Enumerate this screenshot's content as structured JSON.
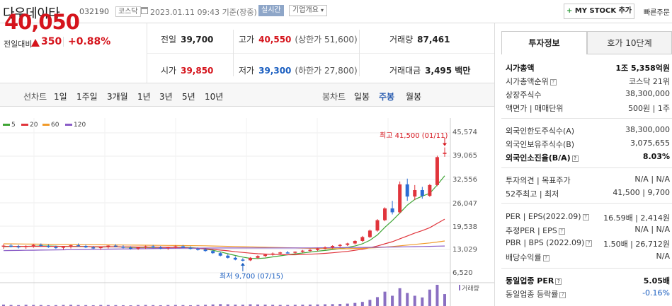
{
  "header": {
    "stock_name": "다우데이타",
    "stock_code": "032190",
    "market": "코스닥",
    "datetime": "2023.01.11 09:43 기준(장중)",
    "realtime": "실시간",
    "company_overview": "기업개요",
    "mystock_button": "MY STOCK 추가",
    "quick_order": "빠른주문"
  },
  "price": {
    "current": "40,050",
    "change_label": "전일대비",
    "change_amount": "350",
    "change_rate": "+0.88%"
  },
  "stats": {
    "prev_close": {
      "label": "전일",
      "value": "39,700"
    },
    "high": {
      "label": "고가",
      "value": "40,550",
      "sub": "(상한가 51,600)"
    },
    "volume": {
      "label": "거래량",
      "value": "87,461"
    },
    "open": {
      "label": "시가",
      "value": "39,850"
    },
    "low": {
      "label": "저가",
      "value": "39,300",
      "sub": "(하한가 27,800)"
    },
    "amount": {
      "label": "거래대금",
      "value": "3,495 백만"
    }
  },
  "periods": {
    "line_label": "선차트",
    "line_items": [
      "1일",
      "1주일",
      "3개월",
      "1년",
      "3년",
      "5년",
      "10년"
    ],
    "candle_label": "봉차트",
    "candle_items": [
      "일봉",
      "주봉",
      "월봉"
    ],
    "active": "주봉"
  },
  "chart_data": {
    "type": "candlestick",
    "legend": [
      {
        "name": "5",
        "color": "#3fa535"
      },
      {
        "name": "20",
        "color": "#e0343b"
      },
      {
        "name": "60",
        "color": "#f19a2a"
      },
      {
        "name": "120",
        "color": "#8a5cc7"
      }
    ],
    "y_ticks": [
      "45,574",
      "39,065",
      "32,556",
      "26,047",
      "19,538",
      "13,029",
      "6,520"
    ],
    "ylim": [
      6520,
      45574
    ],
    "high_annotation": "최고 41,500 (01/11)",
    "low_annotation": "최저 9,700 (07/15)",
    "volume_label": "거래량",
    "candles": [
      [
        13800,
        14500,
        13200,
        14100
      ],
      [
        14100,
        14600,
        13600,
        13900
      ],
      [
        13900,
        14300,
        13300,
        13700
      ],
      [
        13700,
        14200,
        13200,
        14000
      ],
      [
        14000,
        14600,
        13500,
        14300
      ],
      [
        14300,
        14700,
        13800,
        14000
      ],
      [
        14000,
        14400,
        13500,
        13700
      ],
      [
        13700,
        14100,
        13200,
        13500
      ],
      [
        13500,
        14000,
        13000,
        13800
      ],
      [
        13800,
        14300,
        13300,
        14200
      ],
      [
        14200,
        14700,
        13800,
        14000
      ],
      [
        14000,
        14400,
        13400,
        13600
      ],
      [
        13600,
        14000,
        13100,
        13400
      ],
      [
        13400,
        13900,
        12900,
        13700
      ],
      [
        13700,
        14200,
        13300,
        14100
      ],
      [
        14100,
        14500,
        13700,
        13800
      ],
      [
        13800,
        14200,
        13300,
        13500
      ],
      [
        13500,
        13900,
        13000,
        13300
      ],
      [
        13300,
        13800,
        12900,
        13600
      ],
      [
        13600,
        14100,
        13200,
        13900
      ],
      [
        13900,
        14300,
        13400,
        13600
      ],
      [
        13600,
        14000,
        13100,
        13400
      ],
      [
        13400,
        13800,
        12900,
        13700
      ],
      [
        13700,
        14200,
        13300,
        13900
      ],
      [
        13900,
        14300,
        13400,
        13500
      ],
      [
        13500,
        13900,
        13000,
        13200
      ],
      [
        13200,
        13600,
        12700,
        13000
      ],
      [
        13000,
        13400,
        12400,
        12600
      ],
      [
        12600,
        13000,
        11800,
        12000
      ],
      [
        12000,
        12400,
        11100,
        11300
      ],
      [
        11300,
        11700,
        10500,
        10700
      ],
      [
        10700,
        11100,
        10000,
        10200
      ],
      [
        10200,
        10600,
        9700,
        10000
      ],
      [
        10000,
        10900,
        9800,
        10700
      ],
      [
        10700,
        11400,
        10400,
        11200
      ],
      [
        11200,
        11800,
        10900,
        11600
      ],
      [
        11600,
        12200,
        11300,
        11900
      ],
      [
        11900,
        12400,
        11600,
        12200
      ],
      [
        12200,
        12600,
        11900,
        12100
      ],
      [
        12100,
        12500,
        11800,
        12400
      ],
      [
        12400,
        12900,
        12100,
        12700
      ],
      [
        12700,
        13200,
        12400,
        12900
      ],
      [
        12900,
        13500,
        12600,
        13300
      ],
      [
        13300,
        13900,
        13000,
        13600
      ],
      [
        13600,
        14200,
        13300,
        14000
      ],
      [
        14000,
        14600,
        13700,
        14300
      ],
      [
        14300,
        14900,
        14000,
        14700
      ],
      [
        14700,
        15600,
        14400,
        15400
      ],
      [
        15400,
        16800,
        15100,
        16500
      ],
      [
        16500,
        18600,
        16200,
        18300
      ],
      [
        18300,
        21500,
        18000,
        21200
      ],
      [
        21200,
        24800,
        20900,
        24500
      ],
      [
        24500,
        26600,
        22800,
        23400
      ],
      [
        23400,
        32000,
        23000,
        31200
      ],
      [
        31200,
        32800,
        26600,
        27800
      ],
      [
        27800,
        31000,
        26800,
        29600
      ],
      [
        29600,
        30500,
        27200,
        28000
      ],
      [
        28000,
        31300,
        27700,
        31000
      ],
      [
        31000,
        39200,
        30700,
        38800
      ],
      [
        39700,
        41500,
        38900,
        40050
      ]
    ],
    "ma": {
      "5": [
        13800,
        13850,
        13900,
        13900,
        13950,
        14000,
        14000,
        13950,
        13850,
        13850,
        13900,
        13850,
        13750,
        13700,
        13750,
        13750,
        13700,
        13650,
        13600,
        13600,
        13600,
        13600,
        13600,
        13650,
        13650,
        13550,
        13400,
        13150,
        12800,
        12350,
        11850,
        11350,
        10900,
        10550,
        10500,
        10650,
        10950,
        11250,
        11550,
        11800,
        12050,
        12300,
        12550,
        12750,
        13000,
        13300,
        13600,
        14000,
        14600,
        15600,
        17100,
        19200,
        21100,
        23200,
        25400,
        27000,
        27900,
        28700,
        31000,
        33600
      ],
      "20": [
        13900,
        13900,
        13900,
        13900,
        13900,
        13900,
        13900,
        13900,
        13900,
        13850,
        13850,
        13850,
        13800,
        13800,
        13800,
        13800,
        13750,
        13750,
        13700,
        13700,
        13700,
        13650,
        13650,
        13600,
        13550,
        13450,
        13350,
        13200,
        13050,
        12850,
        12650,
        12400,
        12200,
        12000,
        11850,
        11750,
        11650,
        11600,
        11550,
        11550,
        11600,
        11700,
        11800,
        11950,
        12100,
        12300,
        12500,
        12800,
        13100,
        13500,
        14000,
        14600,
        15200,
        16000,
        16800,
        17600,
        18300,
        19100,
        20300,
        21500
      ],
      "60": [
        14600,
        14580,
        14560,
        14540,
        14520,
        14500,
        14480,
        14460,
        14440,
        14420,
        14400,
        14380,
        14360,
        14340,
        14320,
        14300,
        14280,
        14260,
        14240,
        14220,
        14200,
        14180,
        14160,
        14140,
        14120,
        14100,
        14080,
        14060,
        14000,
        13950,
        13900,
        13850,
        13800,
        13750,
        13700,
        13650,
        13600,
        13550,
        13500,
        13450,
        13400,
        13350,
        13300,
        13280,
        13260,
        13240,
        13250,
        13300,
        13350,
        13450,
        13550,
        13700,
        13850,
        14050,
        14250,
        14450,
        14650,
        14850,
        15100,
        15400
      ],
      "120": [
        12700,
        12730,
        12760,
        12790,
        12820,
        12850,
        12880,
        12910,
        12940,
        12970,
        13000,
        13030,
        13060,
        13090,
        13120,
        13150,
        13180,
        13210,
        13240,
        13270,
        13300,
        13320,
        13340,
        13360,
        13380,
        13400,
        13410,
        13420,
        13430,
        13440,
        13440,
        13440,
        13440,
        13440,
        13440,
        13440,
        13440,
        13440,
        13440,
        13450,
        13460,
        13470,
        13480,
        13500,
        13520,
        13540,
        13560,
        13580,
        13600,
        13620,
        13650,
        13680,
        13710,
        13740,
        13780,
        13820,
        13860,
        13900,
        13950,
        14000
      ]
    },
    "volume": [
      40,
      30,
      25,
      35,
      30,
      28,
      22,
      25,
      30,
      35,
      28,
      25,
      22,
      30,
      28,
      25,
      22,
      20,
      28,
      30,
      25,
      22,
      28,
      30,
      26,
      22,
      30,
      35,
      45,
      55,
      50,
      40,
      38,
      50,
      45,
      40,
      35,
      32,
      30,
      35,
      38,
      42,
      45,
      50,
      55,
      60,
      70,
      90,
      120,
      180,
      260,
      420,
      300,
      520,
      380,
      300,
      250,
      480,
      620,
      350
    ]
  },
  "right_panel": {
    "tabs": [
      "투자정보",
      "호가 10단계"
    ],
    "rows": [
      {
        "label": "시가총액",
        "value": "1조 5,358억원",
        "bold": true
      },
      {
        "label": "시가총액순위",
        "value": "코스닥 21위",
        "has_icon": true
      },
      {
        "label": "상장주식수",
        "value": "38,300,000"
      },
      {
        "label": "액면가 | 매매단위",
        "value": "500원 | 1주"
      },
      {
        "label": "외국인한도주식수(A)",
        "value": "38,300,000"
      },
      {
        "label": "외국인보유주식수(B)",
        "value": "3,075,655"
      },
      {
        "label": "외국인소진율(B/A)",
        "value": "8.03%",
        "bold": true,
        "has_icon": true
      },
      {
        "label": "투자의견 | 목표주가",
        "value": "N/A | N/A"
      },
      {
        "label": "52주최고 | 최저",
        "value": "41,500 | 9,700"
      },
      {
        "label": "PER | EPS(2022.09)",
        "value": "16.59배 | 2,414원",
        "has_icon": true
      },
      {
        "label": "추정PER | EPS",
        "value": "N/A | N/A",
        "has_icon": true
      },
      {
        "label": "PBR | BPS (2022.09)",
        "value": "1.50배 | 26,712원",
        "has_icon": true
      },
      {
        "label": "배당수익률",
        "value": "N/A",
        "has_icon": true
      },
      {
        "label": "동일업종 PER",
        "value": "5.05배",
        "bold": true,
        "has_icon": true
      },
      {
        "label": "동일업종 등락률",
        "value": "-0.16%",
        "neg": true,
        "has_icon": true
      }
    ]
  }
}
